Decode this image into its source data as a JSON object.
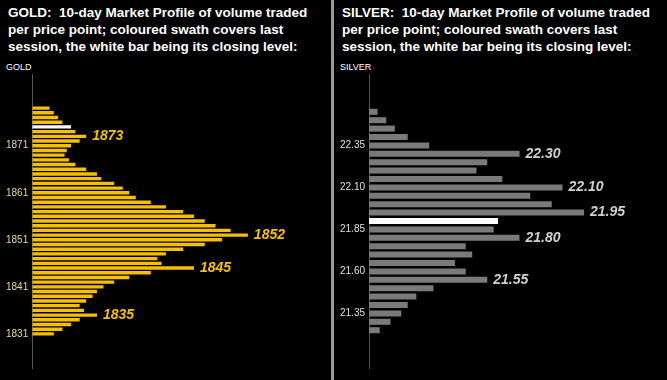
{
  "chart_data": [
    {
      "type": "bar",
      "orientation": "horizontal",
      "title": "GOLD:  10-day Market Profile of volume traded per price point; coloured swath covers last session, the white bar being its closing level:",
      "ylabel": "GOLD",
      "y": [
        1879,
        1878,
        1877,
        1876,
        1875,
        1874,
        1873,
        1872,
        1871,
        1870,
        1869,
        1868,
        1867,
        1866,
        1865,
        1864,
        1863,
        1862,
        1861,
        1860,
        1859,
        1858,
        1857,
        1856,
        1855,
        1854,
        1853,
        1852,
        1851,
        1850,
        1849,
        1848,
        1847,
        1846,
        1845,
        1844,
        1843,
        1842,
        1841,
        1840,
        1839,
        1838,
        1837,
        1836,
        1835,
        1834,
        1833,
        1832,
        1831
      ],
      "values": [
        8,
        10,
        12,
        14,
        18,
        20,
        25,
        22,
        18,
        16,
        15,
        17,
        20,
        25,
        30,
        32,
        38,
        42,
        45,
        48,
        55,
        62,
        70,
        75,
        80,
        85,
        92,
        100,
        88,
        80,
        70,
        62,
        58,
        60,
        75,
        55,
        45,
        38,
        33,
        30,
        28,
        25,
        22,
        24,
        30,
        22,
        18,
        14,
        10
      ],
      "colors": [
        "#f5c000",
        "#f5c000",
        "#f5c000",
        "#f5c000",
        "#ffffff",
        "#f5c000",
        "#f5c000",
        "#f5c000",
        "#f5c000",
        "#f5c000",
        "#f5c000",
        "#f5c000",
        "#f5c000",
        "#f5c000",
        "#f5c000",
        "#f5c000",
        "#f5c000",
        "#f5c000",
        "#f5c000",
        "#f5c000",
        "#f5c000",
        "#f5c000",
        "#f5c000",
        "#f5c000",
        "#f5c000",
        "#f5c000",
        "#f5c000",
        "#f5c000",
        "#f5c000",
        "#f5c000",
        "#f5c000",
        "#f5c000",
        "#f5c000",
        "#f5c000",
        "#f5c000",
        "#f5c000",
        "#f5c000",
        "#f5c000",
        "#f5c000",
        "#f5c000",
        "#f5c000",
        "#f5c000",
        "#f5c000",
        "#f5c000",
        "#f5c000",
        "#f5c000",
        "#f5c000",
        "#f5c000",
        "#f5c000"
      ],
      "ylim": [
        1830,
        1880
      ],
      "yticks": [
        1831,
        1841,
        1851,
        1861,
        1871
      ],
      "xlim": [
        0,
        120
      ],
      "tick_labels": "y",
      "grid": false,
      "annotations": [
        {
          "text": "1873",
          "y": 1873
        },
        {
          "text": "1852",
          "y": 1852
        },
        {
          "text": "1845",
          "y": 1845
        },
        {
          "text": "1835",
          "y": 1835
        }
      ]
    },
    {
      "type": "bar",
      "orientation": "horizontal",
      "title": "SILVER:  10-day Market Profile of volume traded per price point; coloured swath covers last session, the white bar being its closing level:",
      "ylabel": "SILVER",
      "y": [
        22.55,
        22.5,
        22.45,
        22.4,
        22.35,
        22.3,
        22.25,
        22.2,
        22.15,
        22.1,
        22.05,
        22.0,
        21.95,
        21.9,
        21.85,
        21.8,
        21.75,
        21.7,
        21.65,
        21.6,
        21.55,
        21.5,
        21.45,
        21.4,
        21.35,
        21.3,
        21.25
      ],
      "values": [
        4,
        8,
        12,
        18,
        28,
        70,
        55,
        50,
        62,
        90,
        75,
        85,
        100,
        60,
        58,
        70,
        45,
        48,
        40,
        45,
        55,
        30,
        22,
        18,
        15,
        10,
        5
      ],
      "colors": [
        "#7a7a7a",
        "#7a7a7a",
        "#7a7a7a",
        "#7a7a7a",
        "#7a7a7a",
        "#7a7a7a",
        "#7a7a7a",
        "#7a7a7a",
        "#7a7a7a",
        "#7a7a7a",
        "#7a7a7a",
        "#7a7a7a",
        "#7a7a7a",
        "#ffffff",
        "#7a7a7a",
        "#7a7a7a",
        "#7a7a7a",
        "#7a7a7a",
        "#7a7a7a",
        "#7a7a7a",
        "#7a7a7a",
        "#7a7a7a",
        "#7a7a7a",
        "#7a7a7a",
        "#7a7a7a",
        "#7a7a7a",
        "#7a7a7a"
      ],
      "ylim": [
        21.2,
        22.6
      ],
      "yticks": [
        21.35,
        {
          "value": 21.6,
          "label": "21.60"
        },
        21.85,
        {
          "value": 22.1,
          "label": "22.10"
        },
        22.35
      ],
      "xlim": [
        0,
        120
      ],
      "tick_labels": "y",
      "grid": false,
      "annotations": [
        {
          "text": "22.30",
          "y": 22.3
        },
        {
          "text": "22.10",
          "y": 22.1
        },
        {
          "text": "21.95",
          "y": 21.95
        },
        {
          "text": "21.80",
          "y": 21.8
        },
        {
          "text": "21.55",
          "y": 21.55
        }
      ]
    }
  ]
}
